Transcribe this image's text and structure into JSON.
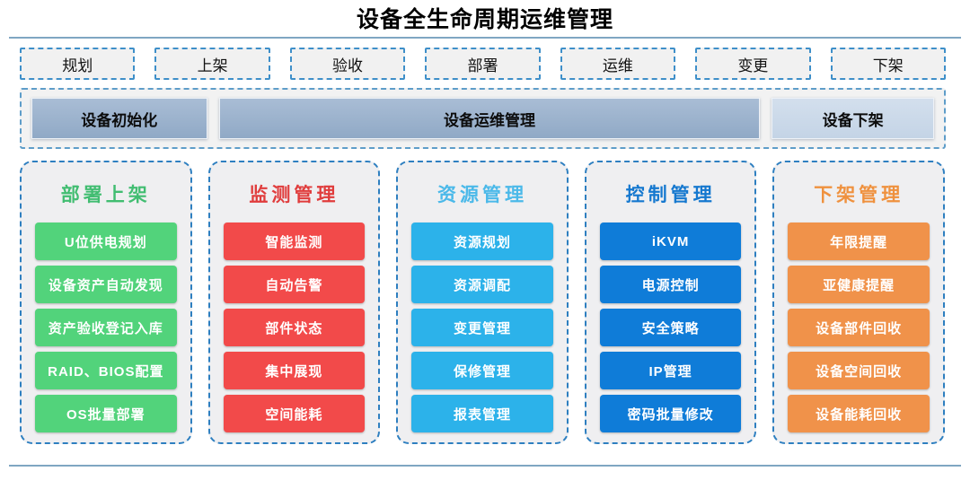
{
  "title": "设备全生命周期运维管理",
  "phases": [
    {
      "label": "规划"
    },
    {
      "label": "上架"
    },
    {
      "label": "验收"
    },
    {
      "label": "部署"
    },
    {
      "label": "运维"
    },
    {
      "label": "变更"
    },
    {
      "label": "下架"
    }
  ],
  "stage_bar": [
    {
      "label": "设备初始化",
      "bg_top": "#a9bdd5",
      "bg_bottom": "#90a9c6",
      "width": "19.5%"
    },
    {
      "label": "设备运维管理",
      "bg_top": "#a9bdd5",
      "bg_bottom": "#90a9c6",
      "width": "60.5%"
    },
    {
      "label": "设备下架",
      "bg_top": "#d3dfed",
      "bg_bottom": "#c4d4e6",
      "width": "18%"
    }
  ],
  "columns": [
    {
      "title": "部署上架",
      "title_color": "#41bd71",
      "button_color": "#52d37b",
      "items": [
        "U位供电规划",
        "设备资产自动发现",
        "资产验收登记入库",
        "RAID、BIOS配置",
        "OS批量部署"
      ]
    },
    {
      "title": "监测管理",
      "title_color": "#e03c3c",
      "button_color": "#f24a4a",
      "items": [
        "智能监测",
        "自动告警",
        "部件状态",
        "集中展现",
        "空间能耗"
      ]
    },
    {
      "title": "资源管理",
      "title_color": "#4bb9e9",
      "button_color": "#2cb2ea",
      "items": [
        "资源规划",
        "资源调配",
        "变更管理",
        "保修管理",
        "报表管理"
      ]
    },
    {
      "title": "控制管理",
      "title_color": "#1578cf",
      "button_color": "#0f7cd8",
      "items": [
        "iKVM",
        "电源控制",
        "安全策略",
        "IP管理",
        "密码批量修改"
      ]
    },
    {
      "title": "下架管理",
      "title_color": "#ef913e",
      "button_color": "#f0924a",
      "items": [
        "年限提醒",
        "亚健康提醒",
        "设备部件回收",
        "设备空间回收",
        "设备能耗回收"
      ]
    }
  ],
  "colors": {
    "dash_border": "#2e7fc0",
    "rule_line": "#7fa6c2"
  }
}
